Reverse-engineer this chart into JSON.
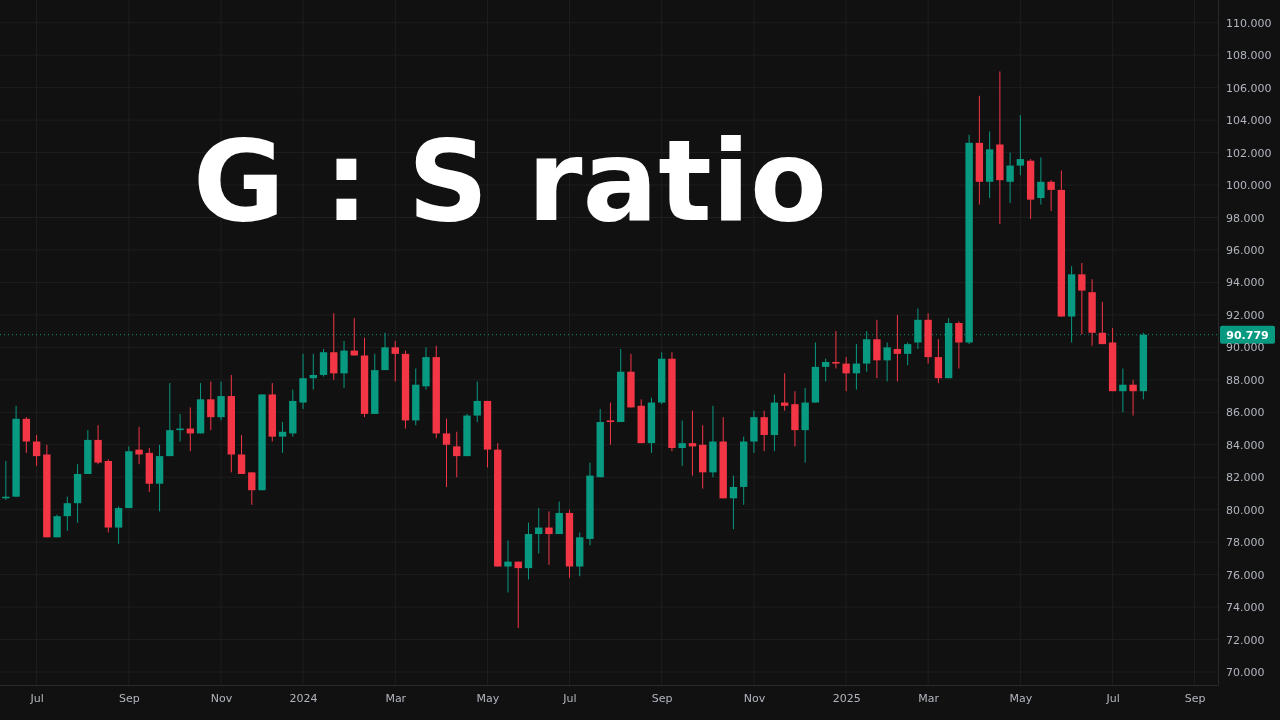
{
  "chart_data": {
    "type": "candlestick",
    "title": "G : S ratio",
    "x": [
      "2023-06-12",
      "2023-06-19",
      "2023-06-26",
      "2023-07-03",
      "2023-07-10",
      "2023-07-17",
      "2023-07-24",
      "2023-07-31",
      "2023-08-07",
      "2023-08-14",
      "2023-08-21",
      "2023-08-28",
      "2023-09-04",
      "2023-09-11",
      "2023-09-18",
      "2023-09-25",
      "2023-10-02",
      "2023-10-09",
      "2023-10-16",
      "2023-10-23",
      "2023-10-30",
      "2023-11-06",
      "2023-11-13",
      "2023-11-20",
      "2023-11-27",
      "2023-12-04",
      "2023-12-11",
      "2023-12-18",
      "2023-12-25",
      "2024-01-01",
      "2024-01-08",
      "2024-01-15",
      "2024-01-22",
      "2024-01-29",
      "2024-02-05",
      "2024-02-12",
      "2024-02-19",
      "2024-02-26",
      "2024-03-04",
      "2024-03-11",
      "2024-03-18",
      "2024-03-25",
      "2024-04-01",
      "2024-04-08",
      "2024-04-15",
      "2024-04-22",
      "2024-04-29",
      "2024-05-06",
      "2024-05-13",
      "2024-05-20",
      "2024-05-27",
      "2024-06-03",
      "2024-06-10",
      "2024-06-17",
      "2024-06-24",
      "2024-07-01",
      "2024-07-08",
      "2024-07-15",
      "2024-07-22",
      "2024-07-29",
      "2024-08-05",
      "2024-08-12",
      "2024-08-19",
      "2024-08-26",
      "2024-09-02",
      "2024-09-09",
      "2024-09-16",
      "2024-09-23",
      "2024-09-30",
      "2024-10-07",
      "2024-10-14",
      "2024-10-21",
      "2024-10-28",
      "2024-11-04",
      "2024-11-11",
      "2024-11-18",
      "2024-11-25",
      "2024-12-02",
      "2024-12-09",
      "2024-12-16",
      "2024-12-23",
      "2024-12-30",
      "2025-01-06",
      "2025-01-13",
      "2025-01-20",
      "2025-01-27",
      "2025-02-03",
      "2025-02-10",
      "2025-02-17",
      "2025-02-24",
      "2025-03-03",
      "2025-03-10",
      "2025-03-17",
      "2025-03-24",
      "2025-03-31",
      "2025-04-07",
      "2025-04-14",
      "2025-04-21",
      "2025-04-28",
      "2025-05-05",
      "2025-05-12",
      "2025-05-19",
      "2025-05-26",
      "2025-06-02",
      "2025-06-09",
      "2025-06-16",
      "2025-06-23",
      "2025-06-30",
      "2025-07-07",
      "2025-07-14",
      "2025-07-21",
      "2025-07-28"
    ],
    "ohlc": [
      [
        80.7,
        83.0,
        80.6,
        80.8
      ],
      [
        80.8,
        86.4,
        80.8,
        85.6
      ],
      [
        85.6,
        85.7,
        83.5,
        84.2
      ],
      [
        84.2,
        84.6,
        82.7,
        83.3
      ],
      [
        83.4,
        84.0,
        78.3,
        78.3
      ],
      [
        78.3,
        79.7,
        78.3,
        79.6
      ],
      [
        79.6,
        80.8,
        78.7,
        80.4
      ],
      [
        80.4,
        82.8,
        79.2,
        82.2
      ],
      [
        82.2,
        84.9,
        82.2,
        84.3
      ],
      [
        84.3,
        85.2,
        82.8,
        82.9
      ],
      [
        83.0,
        83.1,
        78.6,
        78.9
      ],
      [
        78.9,
        80.2,
        77.9,
        80.1
      ],
      [
        80.1,
        83.9,
        80.1,
        83.6
      ],
      [
        83.7,
        85.1,
        82.8,
        83.4
      ],
      [
        83.5,
        83.8,
        81.1,
        81.6
      ],
      [
        81.6,
        84.0,
        79.9,
        83.3
      ],
      [
        83.3,
        87.8,
        83.3,
        84.9
      ],
      [
        84.9,
        85.9,
        84.2,
        85.0
      ],
      [
        85.0,
        86.3,
        83.6,
        84.7
      ],
      [
        84.7,
        87.8,
        84.7,
        86.8
      ],
      [
        86.8,
        87.9,
        84.9,
        85.7
      ],
      [
        85.7,
        87.9,
        85.5,
        87.0
      ],
      [
        87.0,
        88.3,
        82.3,
        83.4
      ],
      [
        83.4,
        84.6,
        82.2,
        82.2
      ],
      [
        82.3,
        82.3,
        80.3,
        81.2
      ],
      [
        81.2,
        87.1,
        81.2,
        87.1
      ],
      [
        87.1,
        87.8,
        84.2,
        84.5
      ],
      [
        84.5,
        85.4,
        83.5,
        84.8
      ],
      [
        84.7,
        87.4,
        84.5,
        86.7
      ],
      [
        86.6,
        89.6,
        86.2,
        88.1
      ],
      [
        88.1,
        89.6,
        87.4,
        88.3
      ],
      [
        88.3,
        89.9,
        88.2,
        89.7
      ],
      [
        89.7,
        92.1,
        88.0,
        88.4
      ],
      [
        88.4,
        90.4,
        87.5,
        89.8
      ],
      [
        89.8,
        91.8,
        89.5,
        89.5
      ],
      [
        89.5,
        90.6,
        85.7,
        85.9
      ],
      [
        85.9,
        89.6,
        85.9,
        88.6
      ],
      [
        88.6,
        90.9,
        88.6,
        90.0
      ],
      [
        90.0,
        90.4,
        87.9,
        89.6
      ],
      [
        89.6,
        89.8,
        85.0,
        85.5
      ],
      [
        85.5,
        88.7,
        85.2,
        87.7
      ],
      [
        87.6,
        90.0,
        87.4,
        89.4
      ],
      [
        89.4,
        90.1,
        84.4,
        84.7
      ],
      [
        84.7,
        85.6,
        81.4,
        84.0
      ],
      [
        83.9,
        84.8,
        82.0,
        83.3
      ],
      [
        83.3,
        85.9,
        83.3,
        85.8
      ],
      [
        85.8,
        87.9,
        85.4,
        86.7
      ],
      [
        86.7,
        86.7,
        82.6,
        83.7
      ],
      [
        83.7,
        84.1,
        76.5,
        76.5
      ],
      [
        76.5,
        78.1,
        74.9,
        76.8
      ],
      [
        76.8,
        76.8,
        72.7,
        76.4
      ],
      [
        76.4,
        79.2,
        75.7,
        78.5
      ],
      [
        78.5,
        80.1,
        77.3,
        78.9
      ],
      [
        78.9,
        79.9,
        76.6,
        78.5
      ],
      [
        78.5,
        80.5,
        78.5,
        79.8
      ],
      [
        79.8,
        80.0,
        75.8,
        76.5
      ],
      [
        76.5,
        78.6,
        75.9,
        78.3
      ],
      [
        78.2,
        82.9,
        77.8,
        82.1
      ],
      [
        82.0,
        86.2,
        82.0,
        85.4
      ],
      [
        85.5,
        86.6,
        84.0,
        85.4
      ],
      [
        85.4,
        89.9,
        85.4,
        88.5
      ],
      [
        88.5,
        89.6,
        86.3,
        86.3
      ],
      [
        86.4,
        86.8,
        84.1,
        84.1
      ],
      [
        84.1,
        86.9,
        83.5,
        86.6
      ],
      [
        86.6,
        89.7,
        86.5,
        89.3
      ],
      [
        89.3,
        89.7,
        83.6,
        83.8
      ],
      [
        83.8,
        85.5,
        82.7,
        84.1
      ],
      [
        84.1,
        86.1,
        82.1,
        83.9
      ],
      [
        84.0,
        85.2,
        81.3,
        82.3
      ],
      [
        82.3,
        86.4,
        82.0,
        84.2
      ],
      [
        84.2,
        85.7,
        80.7,
        80.7
      ],
      [
        80.7,
        82.1,
        78.8,
        81.4
      ],
      [
        81.4,
        84.5,
        80.3,
        84.2
      ],
      [
        84.2,
        86.1,
        83.5,
        85.7
      ],
      [
        85.7,
        86.1,
        83.6,
        84.6
      ],
      [
        84.6,
        87.1,
        83.6,
        86.6
      ],
      [
        86.6,
        88.4,
        86.1,
        86.4
      ],
      [
        86.5,
        87.3,
        83.9,
        84.9
      ],
      [
        84.9,
        87.5,
        82.9,
        86.6
      ],
      [
        86.6,
        90.3,
        86.6,
        88.8
      ],
      [
        88.8,
        89.3,
        87.9,
        89.1
      ],
      [
        89.1,
        91.0,
        88.7,
        89.0
      ],
      [
        89.0,
        89.4,
        87.3,
        88.4
      ],
      [
        88.4,
        90.2,
        87.4,
        89.0
      ],
      [
        89.0,
        91.0,
        88.5,
        90.5
      ],
      [
        90.5,
        91.7,
        88.1,
        89.2
      ],
      [
        89.2,
        90.3,
        87.9,
        90.0
      ],
      [
        89.9,
        92.0,
        87.9,
        89.6
      ],
      [
        89.6,
        90.3,
        88.9,
        90.2
      ],
      [
        90.3,
        92.4,
        89.9,
        91.7
      ],
      [
        91.7,
        92.1,
        89.0,
        89.4
      ],
      [
        89.4,
        90.5,
        87.8,
        88.1
      ],
      [
        88.1,
        91.8,
        88.1,
        91.5
      ],
      [
        91.5,
        91.6,
        88.7,
        90.3
      ],
      [
        90.3,
        103.1,
        90.2,
        102.6
      ],
      [
        102.6,
        105.5,
        98.8,
        100.2
      ],
      [
        100.2,
        103.3,
        99.2,
        102.2
      ],
      [
        102.5,
        107.0,
        97.6,
        100.3
      ],
      [
        100.2,
        102.0,
        98.9,
        101.2
      ],
      [
        101.2,
        104.3,
        100.6,
        101.6
      ],
      [
        101.5,
        101.6,
        97.9,
        99.1
      ],
      [
        99.2,
        101.7,
        98.8,
        100.2
      ],
      [
        100.2,
        100.3,
        98.4,
        99.7
      ],
      [
        99.7,
        100.9,
        91.9,
        91.9
      ],
      [
        91.9,
        95.0,
        90.3,
        94.5
      ],
      [
        94.5,
        95.2,
        90.8,
        93.5
      ],
      [
        93.4,
        94.2,
        90.1,
        90.9
      ],
      [
        90.9,
        92.8,
        90.2,
        90.2
      ],
      [
        90.3,
        91.2,
        87.3,
        87.3
      ],
      [
        87.3,
        88.7,
        86.0,
        87.7
      ],
      [
        87.7,
        88.0,
        85.8,
        87.3
      ],
      [
        87.3,
        90.9,
        86.8,
        90.779
      ]
    ],
    "colors": [
      "#089981",
      "#089981",
      "#f23645",
      "#f23645",
      "#f23645",
      "#089981",
      "#089981",
      "#089981",
      "#089981",
      "#f23645",
      "#f23645",
      "#089981",
      "#089981",
      "#f23645",
      "#f23645",
      "#089981",
      "#089981",
      "#089981",
      "#f23645",
      "#089981",
      "#f23645",
      "#089981",
      "#f23645",
      "#f23645",
      "#f23645",
      "#089981",
      "#f23645",
      "#089981",
      "#089981",
      "#089981",
      "#089981",
      "#089981",
      "#f23645",
      "#089981",
      "#f23645",
      "#f23645",
      "#089981",
      "#089981",
      "#f23645",
      "#f23645",
      "#089981",
      "#089981",
      "#f23645",
      "#f23645",
      "#f23645",
      "#089981",
      "#089981",
      "#f23645",
      "#f23645",
      "#089981",
      "#f23645",
      "#089981",
      "#089981",
      "#f23645",
      "#089981",
      "#f23645",
      "#089981",
      "#089981",
      "#089981",
      "#f23645",
      "#089981",
      "#f23645",
      "#f23645",
      "#089981",
      "#089981",
      "#f23645",
      "#089981",
      "#f23645",
      "#f23645",
      "#089981",
      "#f23645",
      "#089981",
      "#089981",
      "#089981",
      "#f23645",
      "#089981",
      "#f23645",
      "#f23645",
      "#089981",
      "#089981",
      "#089981",
      "#f23645",
      "#f23645",
      "#089981",
      "#089981",
      "#f23645",
      "#089981",
      "#f23645",
      "#089981",
      "#089981",
      "#f23645",
      "#f23645",
      "#089981",
      "#f23645",
      "#089981",
      "#f23645",
      "#089981",
      "#f23645",
      "#089981",
      "#089981",
      "#f23645",
      "#089981",
      "#f23645",
      "#f23645",
      "#089981",
      "#f23645",
      "#f23645",
      "#f23645",
      "#f23645",
      "#089981",
      "#f23645",
      "#089981"
    ],
    "xlim": [
      "2023-06-08",
      "2025-09-17"
    ],
    "xticks": [
      {
        "value": "2023-07-03",
        "label": "Jul"
      },
      {
        "value": "2023-09-04",
        "label": "Sep"
      },
      {
        "value": "2023-11-06",
        "label": "Nov"
      },
      {
        "value": "2024-01-01",
        "label": "2024"
      },
      {
        "value": "2024-03-04",
        "label": "Mar"
      },
      {
        "value": "2024-05-06",
        "label": "May"
      },
      {
        "value": "2024-07-01",
        "label": "Jul"
      },
      {
        "value": "2024-09-02",
        "label": "Sep"
      },
      {
        "value": "2024-11-04",
        "label": "Nov"
      },
      {
        "value": "2025-01-06",
        "label": "2025"
      },
      {
        "value": "2025-03-03",
        "label": "Mar"
      },
      {
        "value": "2025-05-05",
        "label": "May"
      },
      {
        "value": "2025-07-07",
        "label": "Jul"
      },
      {
        "value": "2025-09-01",
        "label": "Sep"
      }
    ],
    "ylim": [
      69.2,
      111.4
    ],
    "yticks": [
      {
        "value": 70,
        "label": "70.000"
      },
      {
        "value": 72,
        "label": "72.000"
      },
      {
        "value": 74,
        "label": "74.000"
      },
      {
        "value": 76,
        "label": "76.000"
      },
      {
        "value": 78,
        "label": "78.000"
      },
      {
        "value": 80,
        "label": "80.000"
      },
      {
        "value": 82,
        "label": "82.000"
      },
      {
        "value": 84,
        "label": "84.000"
      },
      {
        "value": 86,
        "label": "86.000"
      },
      {
        "value": 88,
        "label": "88.000"
      },
      {
        "value": 90,
        "label": "90.000"
      },
      {
        "value": 92,
        "label": "92.000"
      },
      {
        "value": 94,
        "label": "94.000"
      },
      {
        "value": 96,
        "label": "96.000"
      },
      {
        "value": 98,
        "label": "98.000"
      },
      {
        "value": 100,
        "label": "100.000"
      },
      {
        "value": 102,
        "label": "102.000"
      },
      {
        "value": 104,
        "label": "104.000"
      },
      {
        "value": 106,
        "label": "106.000"
      },
      {
        "value": 108,
        "label": "108.000"
      },
      {
        "value": 110,
        "label": "110.000"
      }
    ],
    "ref_lines": [
      {
        "axis": "y",
        "value": 90.779,
        "label": "90.779",
        "color": "#089981",
        "line_style": "dotted"
      }
    ],
    "grid": true
  }
}
